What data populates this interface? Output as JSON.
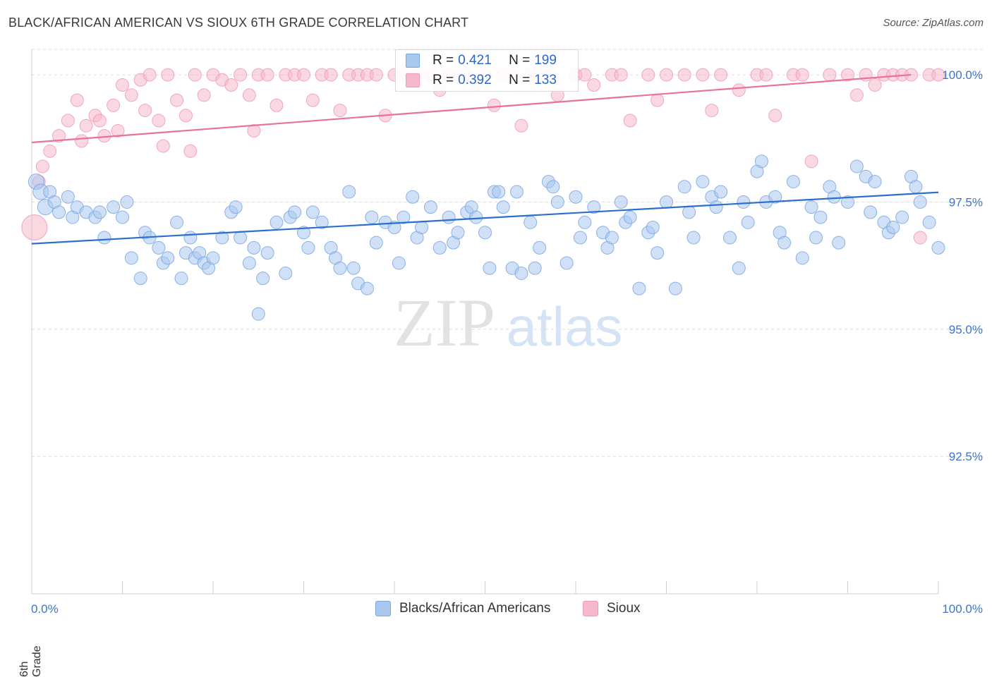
{
  "header": {
    "title": "BLACK/AFRICAN AMERICAN VS SIOUX 6TH GRADE CORRELATION CHART",
    "source": "Source: ZipAtlas.com"
  },
  "watermark": {
    "zip": "ZIP",
    "atlas": "atlas"
  },
  "legend": {
    "rows": [
      {
        "r_label": "R =",
        "r_value": "0.421",
        "n_label": "N =",
        "n_value": "199",
        "color": "#a9c8f0"
      },
      {
        "r_label": "R =",
        "r_value": "0.392",
        "n_label": "N =",
        "n_value": "133",
        "color": "#f6b8cb"
      }
    ]
  },
  "colors": {
    "blue_fill": "#a9c8f0",
    "blue_stroke": "#7aa6df",
    "blue_line": "#2c6fcf",
    "pink_fill": "#f6b8cb",
    "pink_stroke": "#ee9ab4",
    "pink_line": "#e8729a",
    "tick_label": "#3f74c9",
    "grid": "#dddddd"
  },
  "chart_data": {
    "type": "scatter",
    "title": "BLACK/AFRICAN AMERICAN VS SIOUX 6TH GRADE CORRELATION CHART",
    "xlabel": "",
    "ylabel": "6th Grade",
    "xlim": [
      0,
      100
    ],
    "ylim": [
      89.8,
      100.5
    ],
    "x_tick_labels": [
      "0.0%",
      "100.0%"
    ],
    "y_ticks": [
      92.5,
      95.0,
      97.5,
      100.0
    ],
    "y_tick_labels": [
      "92.5%",
      "95.0%",
      "97.5%",
      "100.0%"
    ],
    "grid": true,
    "legend_position": "bottom-center",
    "series": [
      {
        "name": "Blacks/African Americans",
        "r": 0.421,
        "n": 199,
        "trend": {
          "x": [
            0,
            100
          ],
          "y": [
            96.68,
            97.69
          ]
        },
        "points": [
          [
            0.5,
            97.9
          ],
          [
            1.0,
            97.7
          ],
          [
            1.5,
            97.4
          ],
          [
            2.0,
            97.7
          ],
          [
            2.5,
            97.5
          ],
          [
            3.0,
            97.3
          ],
          [
            4.0,
            97.6
          ],
          [
            4.5,
            97.2
          ],
          [
            5.0,
            97.4
          ],
          [
            6.0,
            97.3
          ],
          [
            7.0,
            97.2
          ],
          [
            7.5,
            97.3
          ],
          [
            8.0,
            96.8
          ],
          [
            9.0,
            97.4
          ],
          [
            10.0,
            97.2
          ],
          [
            10.5,
            97.5
          ],
          [
            11.0,
            96.4
          ],
          [
            12.0,
            96.0
          ],
          [
            12.5,
            96.9
          ],
          [
            13.0,
            96.8
          ],
          [
            14.0,
            96.6
          ],
          [
            14.5,
            96.3
          ],
          [
            15.0,
            96.4
          ],
          [
            16.0,
            97.1
          ],
          [
            16.5,
            96.0
          ],
          [
            17.0,
            96.5
          ],
          [
            17.5,
            96.8
          ],
          [
            18.0,
            96.4
          ],
          [
            18.5,
            96.5
          ],
          [
            19.0,
            96.3
          ],
          [
            19.5,
            96.2
          ],
          [
            20.0,
            96.4
          ],
          [
            21.0,
            96.8
          ],
          [
            22.0,
            97.3
          ],
          [
            22.5,
            97.4
          ],
          [
            23.0,
            96.8
          ],
          [
            24.0,
            96.3
          ],
          [
            24.5,
            96.6
          ],
          [
            25.0,
            95.3
          ],
          [
            25.5,
            96.0
          ],
          [
            26.0,
            96.5
          ],
          [
            27.0,
            97.1
          ],
          [
            28.0,
            96.1
          ],
          [
            28.5,
            97.2
          ],
          [
            29.0,
            97.3
          ],
          [
            30.0,
            96.9
          ],
          [
            30.5,
            96.6
          ],
          [
            31.0,
            97.3
          ],
          [
            32.0,
            97.1
          ],
          [
            33.0,
            96.6
          ],
          [
            33.5,
            96.4
          ],
          [
            34.0,
            96.2
          ],
          [
            35.0,
            97.7
          ],
          [
            35.5,
            96.2
          ],
          [
            36.0,
            95.9
          ],
          [
            37.0,
            95.8
          ],
          [
            37.5,
            97.2
          ],
          [
            38.0,
            96.7
          ],
          [
            39.0,
            97.1
          ],
          [
            40.0,
            97.0
          ],
          [
            40.5,
            96.3
          ],
          [
            41.0,
            97.2
          ],
          [
            42.0,
            97.6
          ],
          [
            42.5,
            96.8
          ],
          [
            43.0,
            97.0
          ],
          [
            44.0,
            97.4
          ],
          [
            45.0,
            96.6
          ],
          [
            46.0,
            97.2
          ],
          [
            46.5,
            96.7
          ],
          [
            47.0,
            96.9
          ],
          [
            48.0,
            97.3
          ],
          [
            48.5,
            97.4
          ],
          [
            49.0,
            97.2
          ],
          [
            50.0,
            96.9
          ],
          [
            50.5,
            96.2
          ],
          [
            51.0,
            97.7
          ],
          [
            51.5,
            97.7
          ],
          [
            52.0,
            97.4
          ],
          [
            53.0,
            96.2
          ],
          [
            53.5,
            97.7
          ],
          [
            54.0,
            96.1
          ],
          [
            55.0,
            97.1
          ],
          [
            55.5,
            96.2
          ],
          [
            56.0,
            96.6
          ],
          [
            57.0,
            97.9
          ],
          [
            57.5,
            97.8
          ],
          [
            58.0,
            97.5
          ],
          [
            59.0,
            96.3
          ],
          [
            60.0,
            97.6
          ],
          [
            60.5,
            96.8
          ],
          [
            61.0,
            97.1
          ],
          [
            62.0,
            97.4
          ],
          [
            63.0,
            96.9
          ],
          [
            63.5,
            96.6
          ],
          [
            64.0,
            96.8
          ],
          [
            65.0,
            97.5
          ],
          [
            65.5,
            97.1
          ],
          [
            66.0,
            97.2
          ],
          [
            67.0,
            95.8
          ],
          [
            68.0,
            96.9
          ],
          [
            68.5,
            97.0
          ],
          [
            69.0,
            96.5
          ],
          [
            70.0,
            97.5
          ],
          [
            71.0,
            95.8
          ],
          [
            72.0,
            97.8
          ],
          [
            72.5,
            97.3
          ],
          [
            73.0,
            96.8
          ],
          [
            74.0,
            97.9
          ],
          [
            75.0,
            97.6
          ],
          [
            75.5,
            97.4
          ],
          [
            76.0,
            97.7
          ],
          [
            77.0,
            96.8
          ],
          [
            78.0,
            96.2
          ],
          [
            78.5,
            97.5
          ],
          [
            79.0,
            97.1
          ],
          [
            80.0,
            98.1
          ],
          [
            80.5,
            98.3
          ],
          [
            81.0,
            97.5
          ],
          [
            82.0,
            97.6
          ],
          [
            82.5,
            96.9
          ],
          [
            83.0,
            96.7
          ],
          [
            84.0,
            97.9
          ],
          [
            85.0,
            96.4
          ],
          [
            86.0,
            97.4
          ],
          [
            86.5,
            96.8
          ],
          [
            87.0,
            97.2
          ],
          [
            88.0,
            97.8
          ],
          [
            88.5,
            97.6
          ],
          [
            89.0,
            96.7
          ],
          [
            90.0,
            97.5
          ],
          [
            91.0,
            98.2
          ],
          [
            92.0,
            98.0
          ],
          [
            92.5,
            97.3
          ],
          [
            93.0,
            97.9
          ],
          [
            94.0,
            97.1
          ],
          [
            94.5,
            96.9
          ],
          [
            95.0,
            97.0
          ],
          [
            96.0,
            97.2
          ],
          [
            97.0,
            98.0
          ],
          [
            97.5,
            97.8
          ],
          [
            98.0,
            97.5
          ],
          [
            99.0,
            97.1
          ],
          [
            100.0,
            96.6
          ]
        ]
      },
      {
        "name": "Sioux",
        "r": 0.392,
        "n": 133,
        "trend": {
          "x": [
            0,
            97
          ],
          "y": [
            98.67,
            100.0
          ]
        },
        "points": [
          [
            0.3,
            97.0
          ],
          [
            0.8,
            97.9
          ],
          [
            1.2,
            98.2
          ],
          [
            2.0,
            98.5
          ],
          [
            3.0,
            98.8
          ],
          [
            4.0,
            99.1
          ],
          [
            5.0,
            99.5
          ],
          [
            5.5,
            98.7
          ],
          [
            6.0,
            99.0
          ],
          [
            7.0,
            99.2
          ],
          [
            7.5,
            99.1
          ],
          [
            8.0,
            98.8
          ],
          [
            9.0,
            99.4
          ],
          [
            9.5,
            98.9
          ],
          [
            10.0,
            99.8
          ],
          [
            11.0,
            99.6
          ],
          [
            12.0,
            99.9
          ],
          [
            12.5,
            99.3
          ],
          [
            13.0,
            100.0
          ],
          [
            14.0,
            99.1
          ],
          [
            14.5,
            98.6
          ],
          [
            15.0,
            100.0
          ],
          [
            16.0,
            99.5
          ],
          [
            17.0,
            99.2
          ],
          [
            17.5,
            98.5
          ],
          [
            18.0,
            100.0
          ],
          [
            19.0,
            99.6
          ],
          [
            20.0,
            100.0
          ],
          [
            21.0,
            99.9
          ],
          [
            22.0,
            99.8
          ],
          [
            23.0,
            100.0
          ],
          [
            24.0,
            99.6
          ],
          [
            24.5,
            98.9
          ],
          [
            25.0,
            100.0
          ],
          [
            26.0,
            100.0
          ],
          [
            27.0,
            99.4
          ],
          [
            28.0,
            100.0
          ],
          [
            29.0,
            100.0
          ],
          [
            30.0,
            100.0
          ],
          [
            31.0,
            99.5
          ],
          [
            32.0,
            100.0
          ],
          [
            33.0,
            100.0
          ],
          [
            34.0,
            99.3
          ],
          [
            35.0,
            100.0
          ],
          [
            36.0,
            100.0
          ],
          [
            37.0,
            100.0
          ],
          [
            38.0,
            100.0
          ],
          [
            39.0,
            99.2
          ],
          [
            40.0,
            100.0
          ],
          [
            41.0,
            100.0
          ],
          [
            42.0,
            100.0
          ],
          [
            43.0,
            100.0
          ],
          [
            44.0,
            100.0
          ],
          [
            45.0,
            99.7
          ],
          [
            46.0,
            100.0
          ],
          [
            47.0,
            100.0
          ],
          [
            48.0,
            100.0
          ],
          [
            49.0,
            99.8
          ],
          [
            50.0,
            100.0
          ],
          [
            51.0,
            99.4
          ],
          [
            52.0,
            100.0
          ],
          [
            53.0,
            100.0
          ],
          [
            54.0,
            99.0
          ],
          [
            55.0,
            100.0
          ],
          [
            56.0,
            100.0
          ],
          [
            57.0,
            100.0
          ],
          [
            58.0,
            99.6
          ],
          [
            60.0,
            100.0
          ],
          [
            61.0,
            100.0
          ],
          [
            62.0,
            99.8
          ],
          [
            64.0,
            100.0
          ],
          [
            65.0,
            100.0
          ],
          [
            66.0,
            99.1
          ],
          [
            68.0,
            100.0
          ],
          [
            69.0,
            99.5
          ],
          [
            70.0,
            100.0
          ],
          [
            72.0,
            100.0
          ],
          [
            74.0,
            100.0
          ],
          [
            75.0,
            99.3
          ],
          [
            76.0,
            100.0
          ],
          [
            78.0,
            99.7
          ],
          [
            80.0,
            100.0
          ],
          [
            81.0,
            100.0
          ],
          [
            82.0,
            99.2
          ],
          [
            84.0,
            100.0
          ],
          [
            85.0,
            100.0
          ],
          [
            86.0,
            98.3
          ],
          [
            88.0,
            100.0
          ],
          [
            90.0,
            100.0
          ],
          [
            91.0,
            99.6
          ],
          [
            92.0,
            100.0
          ],
          [
            93.0,
            99.8
          ],
          [
            94.0,
            100.0
          ],
          [
            95.0,
            100.0
          ],
          [
            96.0,
            100.0
          ],
          [
            97.0,
            100.0
          ],
          [
            98.0,
            96.8
          ],
          [
            99.0,
            100.0
          ],
          [
            100.0,
            100.0
          ]
        ]
      }
    ]
  }
}
